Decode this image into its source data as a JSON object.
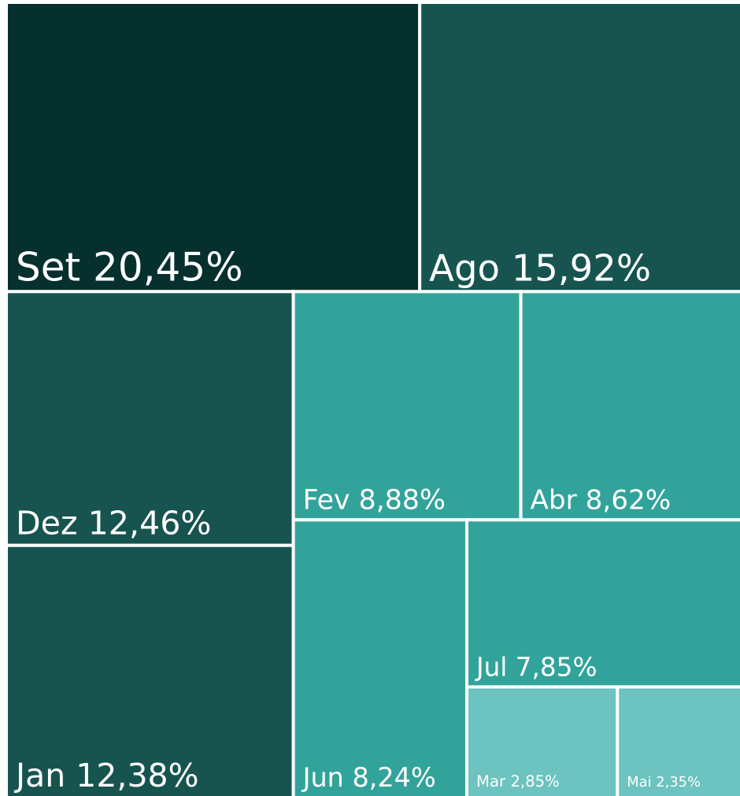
{
  "chart_data": {
    "type": "treemap",
    "categories": [
      "Set",
      "Ago",
      "Dez",
      "Jan",
      "Fev",
      "Abr",
      "Jun",
      "Jul",
      "Mar",
      "Mai"
    ],
    "values": [
      20.45,
      15.92,
      12.46,
      12.38,
      8.88,
      8.62,
      8.24,
      7.85,
      2.85,
      2.35
    ],
    "value_labels": [
      "20,45%",
      "15,92%",
      "12,46%",
      "12,38%",
      "8,88%",
      "8,62%",
      "8,24%",
      "7,85%",
      "2,85%",
      "2,35%"
    ],
    "colors": [
      "#06302e",
      "#17544f",
      "#17544f",
      "#17544f",
      "#32a39a",
      "#32a39a",
      "#32a39a",
      "#32a39a",
      "#6cc3bf",
      "#6cc3bf"
    ]
  }
}
